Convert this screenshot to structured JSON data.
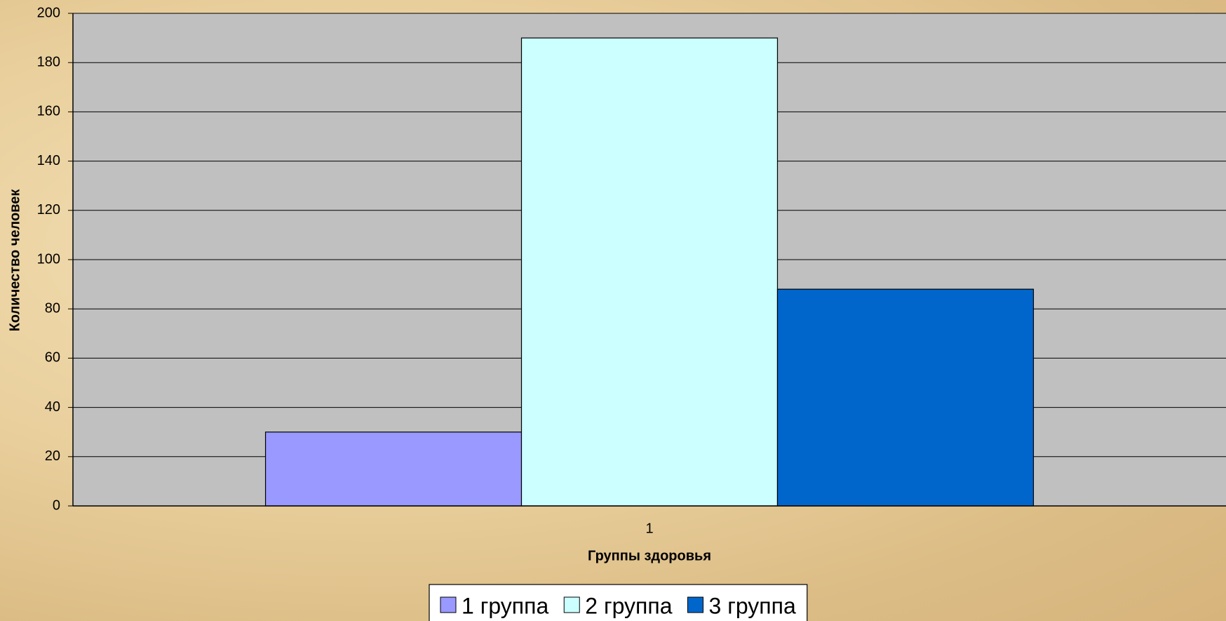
{
  "chart_data": {
    "type": "bar",
    "categories": [
      "1"
    ],
    "series": [
      {
        "name": "1 группа",
        "color": "#9999ff",
        "values": [
          30
        ]
      },
      {
        "name": "2 группа",
        "color": "#ccffff",
        "values": [
          190
        ]
      },
      {
        "name": "3 группа",
        "color": "#0066cc",
        "values": [
          88
        ]
      }
    ],
    "xlabel": "Группы здоровья",
    "ylabel": "Количество человек",
    "ylim": [
      0,
      200
    ],
    "yticks": [
      0,
      20,
      40,
      60,
      80,
      100,
      120,
      140,
      160,
      180,
      200
    ],
    "grid": true,
    "plot_background": "#c0c0c0",
    "legend": "bottom"
  }
}
